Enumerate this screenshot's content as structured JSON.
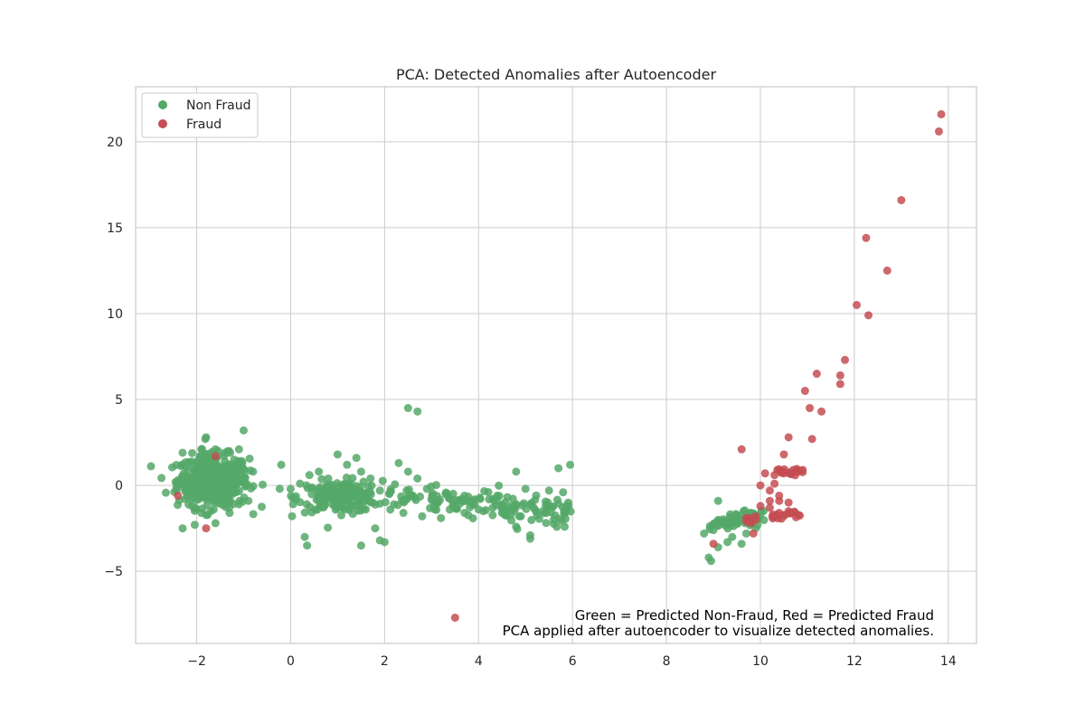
{
  "chart_data": {
    "type": "scatter",
    "title": "PCA: Detected Anomalies after Autoencoder",
    "xlabel": "",
    "ylabel": "",
    "xlim": [
      -3.3,
      14.6
    ],
    "ylim": [
      -9.2,
      23.2
    ],
    "xticks": [
      -2,
      0,
      2,
      4,
      6,
      8,
      10,
      12,
      14
    ],
    "yticks": [
      -5,
      0,
      5,
      10,
      15,
      20
    ],
    "xtick_labels": [
      "−2",
      "0",
      "2",
      "4",
      "6",
      "8",
      "10",
      "12",
      "14"
    ],
    "ytick_labels": [
      "−5",
      "0",
      "5",
      "10",
      "15",
      "20"
    ],
    "grid": true,
    "legend_position": "top-left",
    "legend": [
      "Non Fraud",
      "Fraud"
    ],
    "colors": {
      "Non Fraud": "#55a868",
      "Fraud": "#c44e52"
    },
    "annotation_lines": [
      "Green = Predicted Non-Fraud, Red = Predicted Fraud",
      "PCA applied after autoencoder to visualize detected anomalies."
    ],
    "series": [
      {
        "name": "Non Fraud",
        "points": [
          [
            -2.3,
            1.9
          ],
          [
            -1.8,
            2.8
          ],
          [
            -1.6,
            2.1
          ],
          [
            -1.4,
            1.9
          ],
          [
            -1.1,
            2.1
          ],
          [
            -1.0,
            3.2
          ],
          [
            -1.9,
            2.1
          ],
          [
            -2.3,
            -2.5
          ],
          [
            -1.6,
            -2.2
          ],
          [
            -1.9,
            -1.6
          ],
          [
            -1.7,
            -1.5
          ],
          [
            -1.3,
            -1.6
          ],
          [
            -1.1,
            -1.1
          ],
          [
            -2.1,
            -1.2
          ],
          [
            -0.8,
            0.8
          ],
          [
            -0.9,
            -0.9
          ],
          [
            -2.4,
            0.3
          ],
          [
            -2.2,
            -0.6
          ],
          [
            -1.2,
            1.5
          ],
          [
            -1.5,
            -0.9
          ],
          [
            0.3,
            -3.0
          ],
          [
            0.35,
            -3.5
          ],
          [
            1.5,
            -3.5
          ],
          [
            1.9,
            -3.2
          ],
          [
            2.0,
            -3.3
          ],
          [
            1.8,
            -2.5
          ],
          [
            2.5,
            4.5
          ],
          [
            2.7,
            4.3
          ],
          [
            -0.2,
            1.2
          ],
          [
            0.0,
            -0.2
          ],
          [
            0.2,
            0.1
          ],
          [
            0.4,
            0.6
          ],
          [
            0.6,
            0.8
          ],
          [
            0.8,
            0.4
          ],
          [
            1.0,
            1.8
          ],
          [
            1.2,
            1.2
          ],
          [
            1.4,
            1.6
          ],
          [
            1.5,
            0.8
          ],
          [
            1.7,
            0.4
          ],
          [
            1.9,
            -0.3
          ],
          [
            2.1,
            -0.5
          ],
          [
            2.3,
            1.3
          ],
          [
            2.5,
            0.8
          ],
          [
            2.7,
            0.4
          ],
          [
            2.9,
            -0.2
          ],
          [
            3.1,
            -1.0
          ],
          [
            3.3,
            -0.5
          ],
          [
            3.5,
            -1.3
          ],
          [
            3.7,
            -0.6
          ],
          [
            3.9,
            -0.9
          ],
          [
            4.1,
            -1.5
          ],
          [
            4.3,
            -0.8
          ],
          [
            4.5,
            -1.6
          ],
          [
            4.7,
            -1.2
          ],
          [
            4.8,
            0.8
          ],
          [
            4.9,
            -1.8
          ],
          [
            5.0,
            -0.2
          ],
          [
            5.1,
            -2.9
          ],
          [
            5.1,
            -3.1
          ],
          [
            5.2,
            -1.4
          ],
          [
            5.4,
            -1.6
          ],
          [
            5.5,
            -0.3
          ],
          [
            5.6,
            -2.0
          ],
          [
            5.7,
            1.0
          ],
          [
            5.8,
            -0.4
          ],
          [
            5.95,
            1.2
          ],
          [
            4.8,
            -2.4
          ],
          [
            3.7,
            -1.6
          ],
          [
            1.0,
            -0.9
          ],
          [
            1.3,
            -1.2
          ],
          [
            0.7,
            -0.7
          ],
          [
            2.2,
            -1.1
          ],
          [
            2.8,
            -1.8
          ],
          [
            3.2,
            -1.9
          ],
          [
            4.0,
            -1.4
          ],
          [
            0.9,
            -0.4
          ],
          [
            1.6,
            -1.4
          ],
          [
            2.4,
            -1.6
          ],
          [
            3.4,
            -0.8
          ],
          [
            4.4,
            -0.6
          ],
          [
            8.8,
            -2.8
          ],
          [
            8.9,
            -4.2
          ],
          [
            8.95,
            -4.4
          ],
          [
            9.0,
            -2.3
          ],
          [
            9.1,
            -3.6
          ],
          [
            9.1,
            -0.9
          ],
          [
            9.2,
            -2.2
          ],
          [
            9.3,
            -3.3
          ],
          [
            9.5,
            -2.0
          ],
          [
            9.6,
            -3.4
          ],
          [
            9.8,
            -1.9
          ],
          [
            9.9,
            -2.5
          ],
          [
            10.0,
            -1.7
          ],
          [
            9.7,
            -2.8
          ],
          [
            9.4,
            -3.0
          ],
          [
            9.0,
            -2.6
          ]
        ]
      },
      {
        "name": "Fraud",
        "points": [
          [
            -2.4,
            -0.6
          ],
          [
            -1.8,
            -2.5
          ],
          [
            -1.6,
            1.7
          ],
          [
            3.5,
            -7.7
          ],
          [
            9.6,
            2.1
          ],
          [
            9.0,
            -3.4
          ],
          [
            9.8,
            -2.2
          ],
          [
            9.9,
            -1.8
          ],
          [
            10.0,
            -1.2
          ],
          [
            10.0,
            0.0
          ],
          [
            10.1,
            0.7
          ],
          [
            10.2,
            -0.9
          ],
          [
            10.2,
            -1.3
          ],
          [
            10.3,
            0.1
          ],
          [
            10.3,
            0.6
          ],
          [
            10.4,
            -0.6
          ],
          [
            10.4,
            -0.9
          ],
          [
            10.4,
            -1.6
          ],
          [
            10.5,
            1.8
          ],
          [
            10.5,
            0.7
          ],
          [
            10.6,
            2.8
          ],
          [
            10.6,
            -1.0
          ],
          [
            10.7,
            0.9
          ],
          [
            10.9,
            0.9
          ],
          [
            10.95,
            5.5
          ],
          [
            11.05,
            4.5
          ],
          [
            11.1,
            2.7
          ],
          [
            11.2,
            6.5
          ],
          [
            11.3,
            4.3
          ],
          [
            11.7,
            6.4
          ],
          [
            11.7,
            5.9
          ],
          [
            11.8,
            7.3
          ],
          [
            12.05,
            10.5
          ],
          [
            12.25,
            14.4
          ],
          [
            12.3,
            9.9
          ],
          [
            12.7,
            12.5
          ],
          [
            13.0,
            16.6
          ],
          [
            13.8,
            20.6
          ],
          [
            13.85,
            21.6
          ],
          [
            9.7,
            -2.1
          ],
          [
            10.3,
            -1.8
          ],
          [
            10.6,
            -1.5
          ],
          [
            10.8,
            0.8
          ],
          [
            10.2,
            -0.3
          ],
          [
            9.9,
            -2.0
          ],
          [
            9.85,
            -2.8
          ]
        ]
      }
    ]
  }
}
